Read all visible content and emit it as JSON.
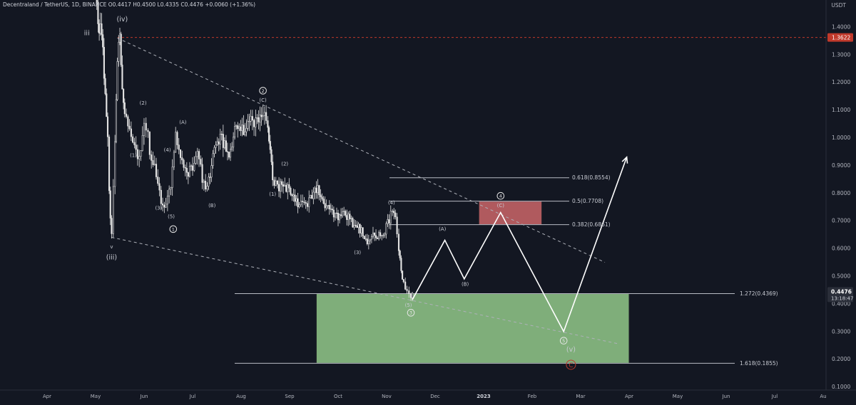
{
  "header": {
    "symbol": "Decentraland / TetherUS, 1D, BINANCE",
    "open": "O0.4417",
    "high": "H0.4500",
    "low": "L0.4335",
    "close": "C0.4476",
    "change": "+0.0060 (+1.36%)"
  },
  "currency_label": "USDT",
  "colors": {
    "background": "#131722",
    "candle": "#e6e6e6",
    "price_line": "#c0392b",
    "green_zone": "#7fae7a",
    "red_zone": "#b05a5e",
    "projection": "#ffffff"
  },
  "chart_data": {
    "type": "candlestick",
    "y_axis": {
      "min": 0.1,
      "max": 1.5,
      "ticks": [
        "0.1000",
        "0.2000",
        "0.3000",
        "0.4000",
        "0.5000",
        "0.6000",
        "0.7000",
        "0.8000",
        "0.9000",
        "1.0000",
        "1.1000",
        "1.2000",
        "1.3000",
        "1.4000"
      ]
    },
    "x_axis": {
      "labels": [
        {
          "label": "r",
          "pos": 0
        },
        {
          "label": "Apr",
          "pos": 1
        },
        {
          "label": "May",
          "pos": 2
        },
        {
          "label": "Jun",
          "pos": 3
        },
        {
          "label": "Jul",
          "pos": 4
        },
        {
          "label": "Aug",
          "pos": 5
        },
        {
          "label": "Sep",
          "pos": 6
        },
        {
          "label": "Oct",
          "pos": 7
        },
        {
          "label": "Nov",
          "pos": 8
        },
        {
          "label": "Dec",
          "pos": 9
        },
        {
          "label": "2023",
          "pos": 10
        },
        {
          "label": "Feb",
          "pos": 11
        },
        {
          "label": "Mar",
          "pos": 12
        },
        {
          "label": "Apr",
          "pos": 13
        },
        {
          "label": "May",
          "pos": 14
        },
        {
          "label": "Jun",
          "pos": 15
        },
        {
          "label": "Jul",
          "pos": 16
        },
        {
          "label": "Au",
          "pos": 17
        }
      ]
    },
    "price_path": [
      [
        2.0,
        1.5
      ],
      [
        2.05,
        1.42
      ],
      [
        2.1,
        1.38
      ],
      [
        2.15,
        1.3
      ],
      [
        2.2,
        1.15
      ],
      [
        2.25,
        1.02
      ],
      [
        2.28,
        0.8
      ],
      [
        2.33,
        0.64
      ],
      [
        2.4,
        1.0
      ],
      [
        2.45,
        1.3
      ],
      [
        2.5,
        1.35
      ],
      [
        2.55,
        1.2
      ],
      [
        2.6,
        1.1
      ],
      [
        2.7,
        1.05
      ],
      [
        2.8,
        0.98
      ],
      [
        2.9,
        0.92
      ],
      [
        3.0,
        1.07
      ],
      [
        3.08,
        1.0
      ],
      [
        3.15,
        0.92
      ],
      [
        3.25,
        0.88
      ],
      [
        3.35,
        0.78
      ],
      [
        3.45,
        0.75
      ],
      [
        3.55,
        0.84
      ],
      [
        3.65,
        1.0
      ],
      [
        3.75,
        0.92
      ],
      [
        3.85,
        0.87
      ],
      [
        4.0,
        0.9
      ],
      [
        4.1,
        0.95
      ],
      [
        4.2,
        0.85
      ],
      [
        4.3,
        0.82
      ],
      [
        4.45,
        0.96
      ],
      [
        4.6,
        1.0
      ],
      [
        4.75,
        0.93
      ],
      [
        4.9,
        1.05
      ],
      [
        5.05,
        1.02
      ],
      [
        5.2,
        1.08
      ],
      [
        5.3,
        1.05
      ],
      [
        5.45,
        1.09
      ],
      [
        5.55,
        1.02
      ],
      [
        5.6,
        0.95
      ],
      [
        5.65,
        0.85
      ],
      [
        5.75,
        0.82
      ],
      [
        5.9,
        0.83
      ],
      [
        6.05,
        0.8
      ],
      [
        6.2,
        0.76
      ],
      [
        6.4,
        0.77
      ],
      [
        6.55,
        0.82
      ],
      [
        6.7,
        0.76
      ],
      [
        6.85,
        0.73
      ],
      [
        7.0,
        0.71
      ],
      [
        7.15,
        0.72
      ],
      [
        7.3,
        0.69
      ],
      [
        7.45,
        0.67
      ],
      [
        7.6,
        0.62
      ],
      [
        7.75,
        0.65
      ],
      [
        7.9,
        0.64
      ],
      [
        8.05,
        0.7
      ],
      [
        8.12,
        0.74
      ],
      [
        8.18,
        0.72
      ],
      [
        8.25,
        0.6
      ],
      [
        8.3,
        0.52
      ],
      [
        8.35,
        0.48
      ],
      [
        8.42,
        0.44
      ],
      [
        8.5,
        0.42
      ],
      [
        8.53,
        0.4476
      ]
    ],
    "last_price": 1.3622,
    "current_price": {
      "label": "0.4476",
      "timer": "13:18:47",
      "value": 0.4476
    },
    "fib_levels": [
      {
        "label": "0.618(0.8554)",
        "value": 0.8554
      },
      {
        "label": "0.5(0.7708)",
        "value": 0.7708
      },
      {
        "label": "0.382(0.6861)",
        "value": 0.6861
      },
      {
        "label": "1.272(0.4369)",
        "value": 0.4369
      },
      {
        "label": "1.618(0.1855)",
        "value": 0.1855
      }
    ],
    "zones": [
      {
        "name": "red-zone",
        "x0": 9.9,
        "x1": 11.2,
        "top": 0.7708,
        "bottom": 0.6861
      },
      {
        "name": "green-zone",
        "x0": 6.55,
        "x1": 13.0,
        "top": 0.4369,
        "bottom": 0.1855
      }
    ],
    "projection": [
      [
        8.53,
        0.415
      ],
      [
        9.2,
        0.63
      ],
      [
        9.6,
        0.49
      ],
      [
        10.35,
        0.73
      ],
      [
        11.65,
        0.3
      ],
      [
        12.95,
        0.93
      ]
    ],
    "trendlines": [
      {
        "from": [
          2.45,
          1.36
        ],
        "to": [
          12.5,
          0.55
        ]
      },
      {
        "from": [
          2.33,
          0.64
        ],
        "to": [
          12.8,
          0.255
        ]
      }
    ],
    "wave_labels": [
      {
        "text": "iii",
        "x": 1.82,
        "y": 1.37,
        "size": "large"
      },
      {
        "text": "(iv)",
        "x": 2.55,
        "y": 1.42,
        "size": "large"
      },
      {
        "text": "v",
        "x": 2.33,
        "y": 0.6,
        "size": "small"
      },
      {
        "text": "(iii)",
        "x": 2.33,
        "y": 0.56,
        "size": "large"
      },
      {
        "text": "(2)",
        "x": 2.98,
        "y": 1.12,
        "size": "small"
      },
      {
        "text": "(1)",
        "x": 2.78,
        "y": 0.93,
        "size": "small"
      },
      {
        "text": "(4)",
        "x": 3.48,
        "y": 0.95,
        "size": "small"
      },
      {
        "text": "(3)",
        "x": 3.3,
        "y": 0.74,
        "size": "small"
      },
      {
        "text": "(5)",
        "x": 3.56,
        "y": 0.71,
        "size": "small"
      },
      {
        "text": "(A)",
        "x": 3.8,
        "y": 1.05,
        "size": "small"
      },
      {
        "text": "(B)",
        "x": 4.4,
        "y": 0.75,
        "size": "small"
      },
      {
        "text": "(C)",
        "x": 5.45,
        "y": 1.13,
        "size": "small"
      },
      {
        "text": "(2)",
        "x": 5.9,
        "y": 0.9,
        "size": "small"
      },
      {
        "text": "(1)",
        "x": 5.65,
        "y": 0.79,
        "size": "small"
      },
      {
        "text": "(3)",
        "x": 7.4,
        "y": 0.58,
        "size": "small"
      },
      {
        "text": "(4)",
        "x": 8.1,
        "y": 0.76,
        "size": "small"
      },
      {
        "text": "(5)",
        "x": 8.45,
        "y": 0.39,
        "size": "small"
      },
      {
        "text": "(A)",
        "x": 9.15,
        "y": 0.665,
        "size": "small"
      },
      {
        "text": "(B)",
        "x": 9.62,
        "y": 0.465,
        "size": "small"
      },
      {
        "text": "(C)",
        "x": 10.35,
        "y": 0.75,
        "size": "small"
      },
      {
        "text": "(v)",
        "x": 11.8,
        "y": 0.228,
        "size": "large"
      }
    ],
    "circled_labels": [
      {
        "text": "2",
        "x": 5.45,
        "y": 1.17
      },
      {
        "text": "1",
        "x": 3.6,
        "y": 0.67
      },
      {
        "text": "3",
        "x": 8.5,
        "y": 0.368
      },
      {
        "text": "4",
        "x": 10.35,
        "y": 0.79
      },
      {
        "text": "5",
        "x": 11.65,
        "y": 0.267
      },
      {
        "text": "C",
        "x": 11.8,
        "y": 0.18,
        "accent": true
      }
    ]
  }
}
